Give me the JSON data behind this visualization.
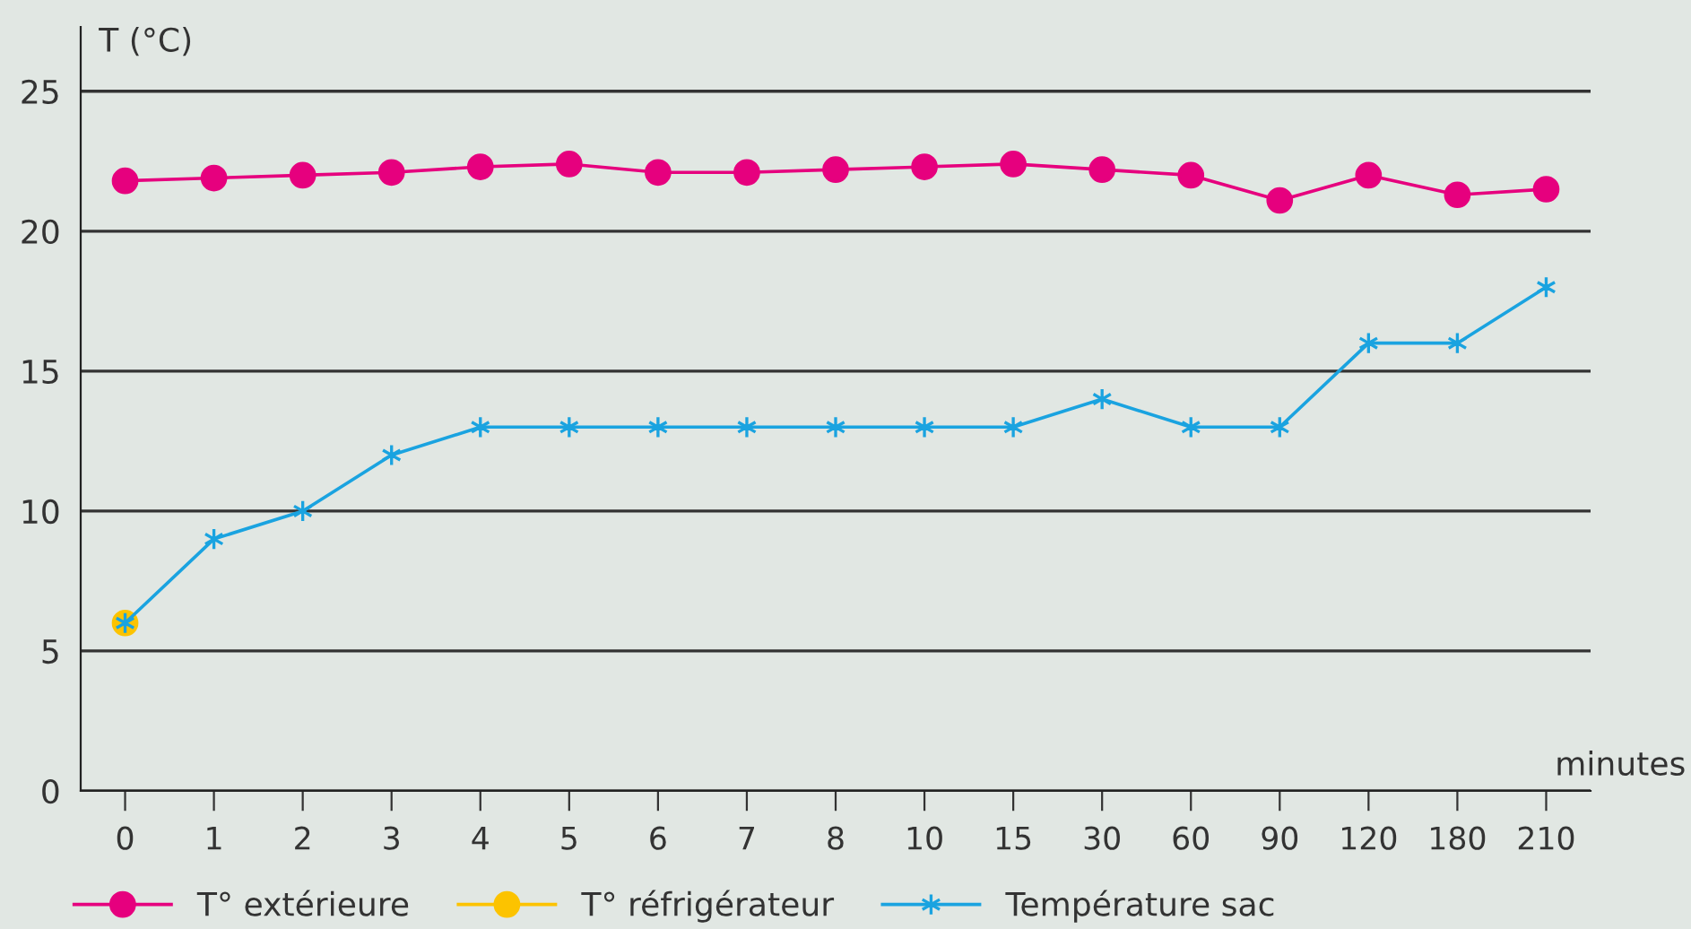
{
  "chart_data": {
    "type": "line",
    "ylabel": "T (°C)",
    "xlabel": "minutes",
    "categories": [
      "0",
      "1",
      "2",
      "3",
      "4",
      "5",
      "6",
      "7",
      "8",
      "10",
      "15",
      "30",
      "60",
      "90",
      "120",
      "180",
      "210"
    ],
    "series": [
      {
        "name": "T° extérieure",
        "color": "#e6007e",
        "marker": "circle",
        "values": [
          21.8,
          21.9,
          22.0,
          22.1,
          22.3,
          22.4,
          22.1,
          22.1,
          22.2,
          22.3,
          22.4,
          22.2,
          22.0,
          21.1,
          22.0,
          21.3,
          21.5
        ]
      },
      {
        "name": "T° réfrigérateur",
        "color": "#fcc300",
        "marker": "circle",
        "values": [
          6,
          null,
          null,
          null,
          null,
          null,
          null,
          null,
          null,
          null,
          null,
          null,
          null,
          null,
          null,
          null,
          null
        ]
      },
      {
        "name": "Température sac",
        "color": "#1aa3e0",
        "marker": "cross",
        "values": [
          6,
          9,
          10,
          12,
          13,
          13,
          13,
          13,
          13,
          13,
          13,
          14,
          13,
          13,
          16,
          16,
          18
        ]
      }
    ],
    "ylim": [
      0,
      27.3
    ],
    "yticks": [
      0,
      5,
      10,
      15,
      20,
      25
    ],
    "grid": "y",
    "legend": "bottom",
    "line_style": "solid"
  }
}
